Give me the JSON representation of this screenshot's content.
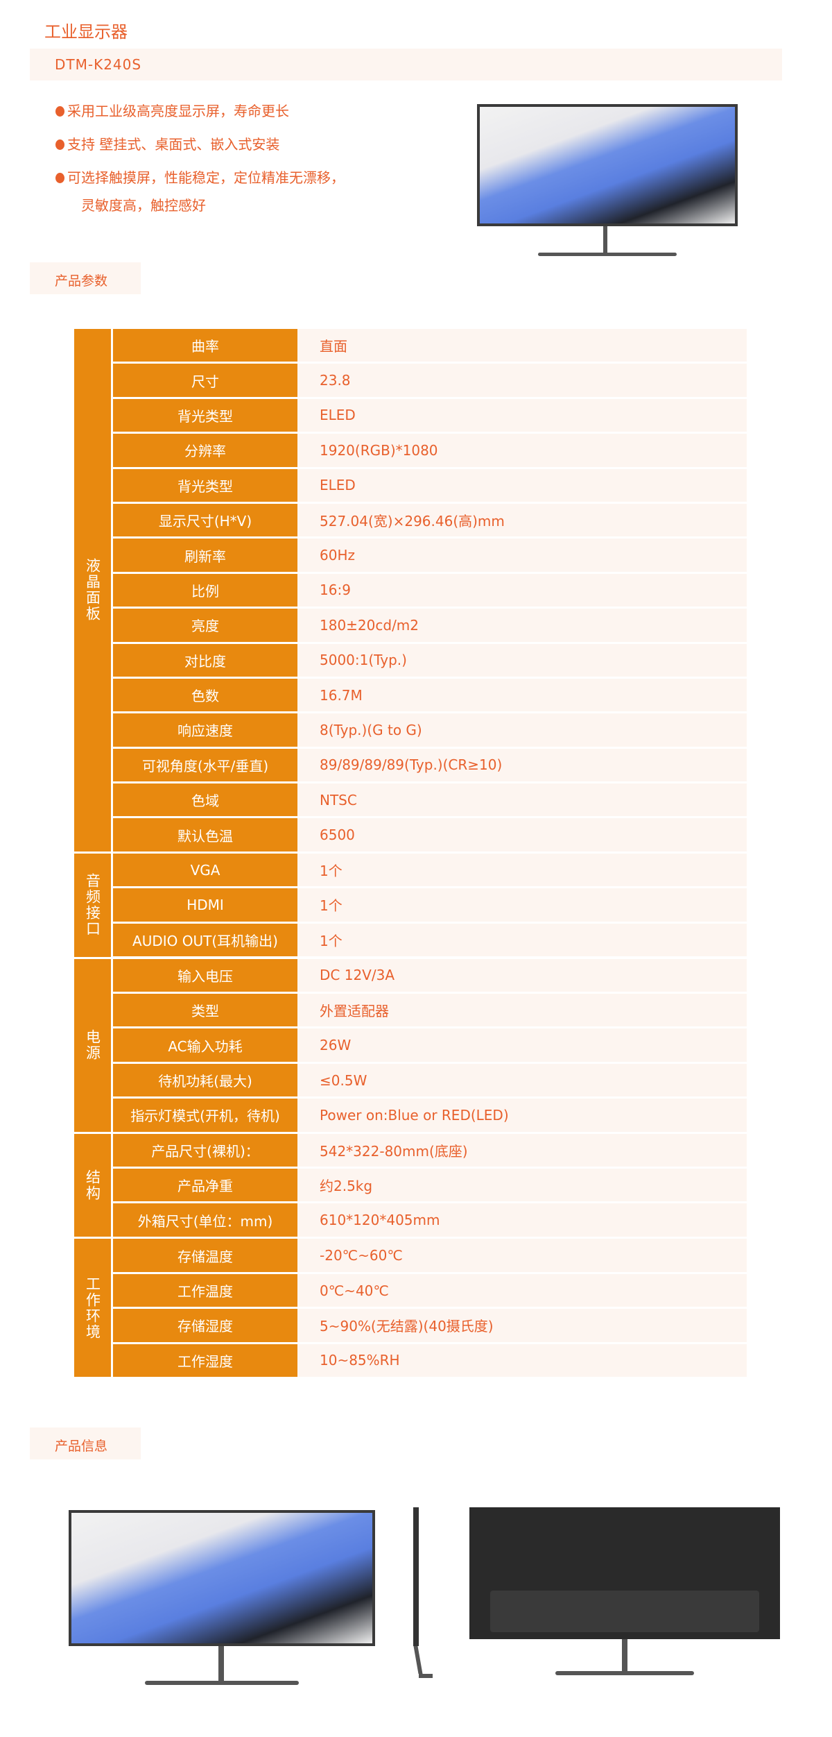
{
  "header": {
    "title": "工业显示器",
    "model": "DTM-K240S"
  },
  "features": [
    "采用工业级高亮度显示屏，寿命更长",
    "支持 壁挂式、桌面式、嵌入式安装",
    "可选择触摸屏，性能稳定，定位精准无漂移，",
    "灵敏度高，触控感好"
  ],
  "sections": {
    "params": "产品参数",
    "info": "产品信息"
  },
  "colors": {
    "accent": "#e8890f",
    "text": "#e8602c",
    "light_bg": "#fdf5f0"
  },
  "spec_groups": [
    {
      "name": "液晶面板",
      "rows": [
        {
          "label": "曲率",
          "value": "直面"
        },
        {
          "label": "尺寸",
          "value": "23.8"
        },
        {
          "label": "背光类型",
          "value": "ELED"
        },
        {
          "label": "分辨率",
          "value": "1920(RGB)*1080"
        },
        {
          "label": "背光类型",
          "value": "ELED"
        },
        {
          "label": "显示尺寸(H*V)",
          "value": "527.04(宽)×296.46(高)mm"
        },
        {
          "label": "刷新率",
          "value": "60Hz"
        },
        {
          "label": "比例",
          "value": "16:9"
        },
        {
          "label": "亮度",
          "value": "180±20cd/m2"
        },
        {
          "label": "对比度",
          "value": "5000:1(Typ.)"
        },
        {
          "label": "色数",
          "value": "16.7M"
        },
        {
          "label": "响应速度",
          "value": "8(Typ.)(G to G)"
        },
        {
          "label": "可视角度(水平/垂直)",
          "value": "89/89/89/89(Typ.)(CR≥10)"
        },
        {
          "label": "色域",
          "value": "NTSC"
        },
        {
          "label": "默认色温",
          "value": "6500"
        }
      ]
    },
    {
      "name": "音频接口",
      "rows": [
        {
          "label": "VGA",
          "value": "1个"
        },
        {
          "label": "HDMI",
          "value": "1个"
        },
        {
          "label": "AUDIO OUT(耳机输出)",
          "value": "1个"
        }
      ]
    },
    {
      "name": "电源",
      "rows": [
        {
          "label": "输入电压",
          "value": "DC 12V/3A"
        },
        {
          "label": "类型",
          "value": "外置适配器"
        },
        {
          "label": "AC输入功耗",
          "value": "26W"
        },
        {
          "label": "待机功耗(最大)",
          "value": "≤0.5W"
        },
        {
          "label": "指示灯模式(开机，待机)",
          "value": "Power on:Blue or RED(LED)"
        }
      ]
    },
    {
      "name": "结构",
      "rows": [
        {
          "label": "产品尺寸(裸机)：",
          "value": "542*322-80mm(底座)"
        },
        {
          "label": "产品净重",
          "value": "约2.5kg"
        },
        {
          "label": "外箱尺寸(单位：mm)",
          "value": "610*120*405mm"
        }
      ]
    },
    {
      "name": "工作环境",
      "rows": [
        {
          "label": "存储温度",
          "value": "-20℃~60℃"
        },
        {
          "label": "工作温度",
          "value": "0℃~40℃"
        },
        {
          "label": "存储湿度",
          "value": "5~90%(无结露)(40摄氏度)"
        },
        {
          "label": "工作湿度",
          "value": "10~85%RH"
        }
      ]
    }
  ]
}
